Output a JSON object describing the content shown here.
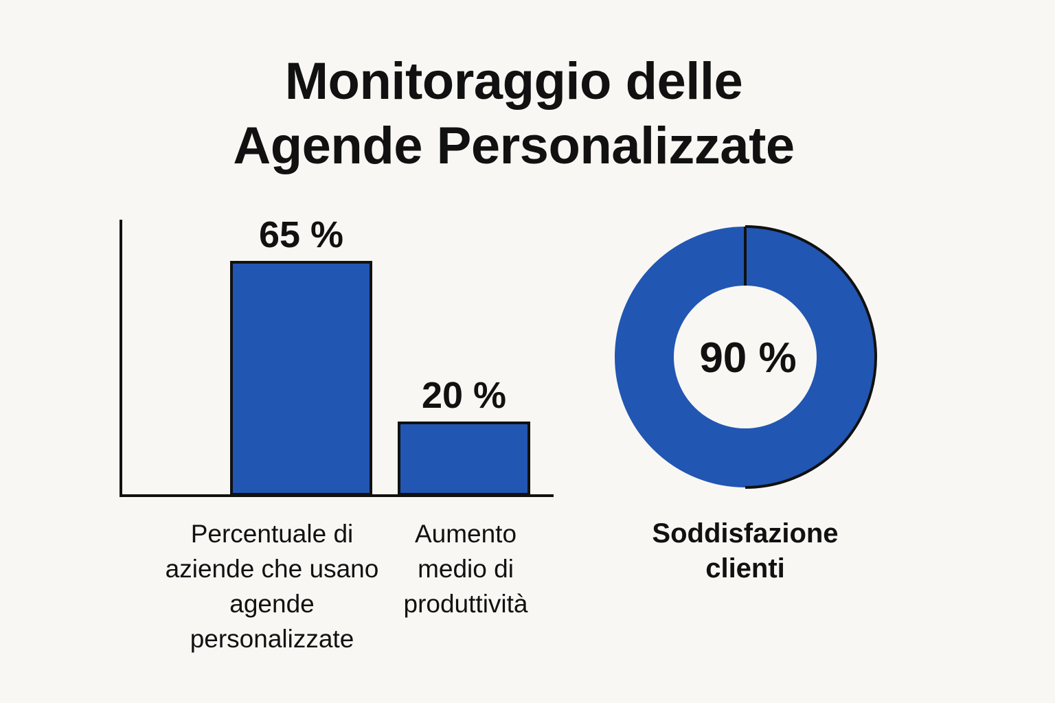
{
  "title": {
    "line1": "Monitoraggio delle",
    "line2": "Agende Personalizzate"
  },
  "colors": {
    "background": "#f8f7f3",
    "bar_fill": "#2156b3",
    "outline": "#111111",
    "text": "#111111"
  },
  "chart_data": [
    {
      "type": "bar",
      "categories": [
        "Percentuale di aziende che usano agende personalizzate",
        "Aumento medio di produttività"
      ],
      "values": [
        65,
        20
      ],
      "value_labels": [
        "65 %",
        "20 %"
      ],
      "ylim": [
        0,
        100
      ],
      "xlabel": "",
      "ylabel": "",
      "grid": false
    },
    {
      "type": "pie",
      "style": "donut",
      "categories": [
        "Soddisfazione clienti"
      ],
      "values": [
        90
      ],
      "value_label": "90 %",
      "label": "Soddisfazione clienti"
    }
  ]
}
